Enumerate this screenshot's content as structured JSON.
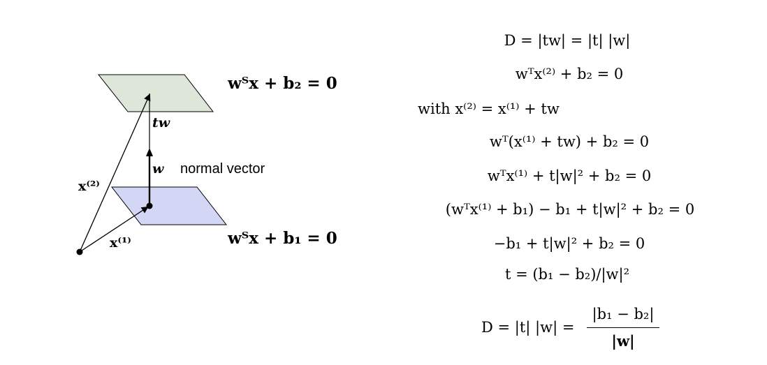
{
  "diagram": {
    "plane_top_equation": "wᵀx + b₂ = 0",
    "plane_bottom_equation": "wᵀx + b₁ = 0",
    "label_tw": "tw",
    "label_w": "w",
    "label_normal_vector": "normal vector",
    "label_x2": "x⁽²⁾",
    "label_x1": "x⁽¹⁾",
    "colors": {
      "plane_top_fill": "#dde6d8",
      "plane_bottom_fill": "#d4d6f5",
      "stroke": "#000000"
    }
  },
  "derivation": {
    "lines": [
      "D = |tw| = |t| |w|",
      "wᵀx⁽²⁾ + b₂ = 0",
      "with x⁽²⁾ = x⁽¹⁾ + tw",
      "wᵀ(x⁽¹⁾ + tw) + b₂ = 0",
      "wᵀx⁽¹⁾ + t|w|² + b₂ = 0",
      "(wᵀx⁽¹⁾ + b₁) − b₁ + t|w|² + b₂ = 0",
      "−b₁ + t|w|² + b₂ = 0",
      "t = (b₁ − b₂)/|w|²"
    ],
    "final_lhs": "D = |t| |w| =",
    "final_numerator": "|b₁ − b₂|",
    "final_denominator": "|w|"
  }
}
